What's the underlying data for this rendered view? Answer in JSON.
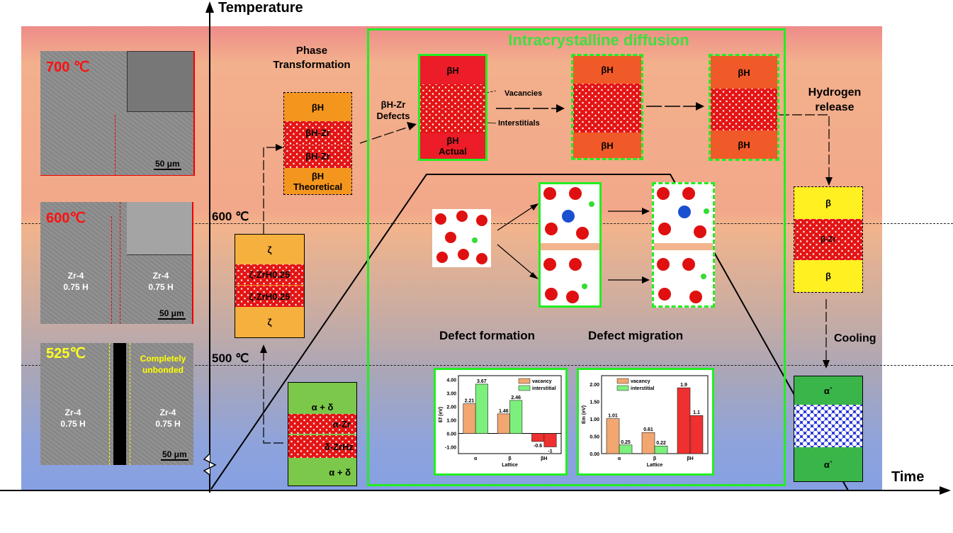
{
  "axes": {
    "y_label": "Temperature",
    "x_label": "Time",
    "t600": "600 ℃",
    "t500": "500 ℃"
  },
  "micrographs": [
    {
      "temp": "700 ℃",
      "scale": "50 μm",
      "color": "#ff1010"
    },
    {
      "temp": "600℃",
      "scale": "50 μm",
      "left": "Zr-4\n0.75 H",
      "right": "Zr-4\n0.75 H",
      "color": "#ff1010"
    },
    {
      "temp": "525℃",
      "scale": "50 μm",
      "left": "Zr-4\n0.75 H",
      "right": "Zr-4\n0.75 H",
      "note": "Completely\nunbonded",
      "color": "#ffff20"
    }
  ],
  "phase_transformation": {
    "title": "Phase\nTransformation",
    "theoretical": {
      "top": "βH",
      "mid1": "βH-Zr",
      "mid2": "βH-Zr",
      "bottom": "βH",
      "caption": "Theoretical"
    },
    "zeta": {
      "top": "ζ",
      "mid1": "ζ-ZrH0.25",
      "mid2": "ζ-ZrH0.25",
      "bottom": "ζ"
    },
    "alpha_delta": {
      "top": "α + δ",
      "mid1": "α-Zr",
      "mid2": "δ-ZrHz",
      "bottom": "α + δ"
    }
  },
  "diffusion": {
    "title": "Intracrystalline diffusion",
    "defects_label": "βH-Zr\nDefects",
    "vacancies": "Vacancies",
    "interstitials": "Interstitials",
    "actual": {
      "top": "βH",
      "bottom": "βH",
      "caption": "Actual"
    },
    "stage2": {
      "top": "βH",
      "bottom": "βH"
    },
    "stage3": {
      "top": "βH",
      "bottom": "βH"
    },
    "defect_formation": "Defect formation",
    "defect_migration": "Defect migration"
  },
  "right": {
    "hydrogen_release": "Hydrogen\nrelease",
    "cooling": "Cooling",
    "beta": {
      "top": "β",
      "mid": "β-Zr",
      "bottom": "β"
    },
    "alpha": {
      "top": "α`",
      "bottom": "α`"
    }
  },
  "colors": {
    "frame_green": "#22ee22",
    "title_green": "#3ee03e",
    "vacancy": "#f2a670",
    "interstitial": "#7cf07c",
    "betaH": "#e8202a"
  },
  "chart_data": [
    {
      "type": "bar",
      "ylabel": "Ef (eV)",
      "xlabel": "Lattice",
      "categories": [
        "α",
        "β",
        "βH"
      ],
      "ylim": [
        -1.5,
        4.3
      ],
      "yticks": [
        "4.00",
        "3.00",
        "2.00",
        "1.00",
        "0.00",
        "-1.00"
      ],
      "ytick_values": [
        4,
        3,
        2,
        1,
        0,
        -1
      ],
      "series": [
        {
          "name": "vacancy",
          "values": [
            2.21,
            1.46,
            -0.6
          ]
        },
        {
          "name": "interstitial",
          "values": [
            3.67,
            2.46,
            -1
          ]
        }
      ],
      "labels": [
        [
          "2.21",
          "1.46",
          "-0.6"
        ],
        [
          "3.67",
          "2.46",
          "-1"
        ]
      ],
      "legend": "top-right"
    },
    {
      "type": "bar",
      "ylabel": "Em (eV)",
      "xlabel": "Lattice",
      "categories": [
        "α",
        "β",
        "βH"
      ],
      "ylim": [
        0,
        2.25
      ],
      "yticks": [
        "2.00",
        "1.50",
        "1.00",
        "0.50",
        "0.00"
      ],
      "ytick_values": [
        2,
        1.5,
        1,
        0.5,
        0
      ],
      "series": [
        {
          "name": "vacancy",
          "values": [
            1.01,
            0.61,
            1.9
          ]
        },
        {
          "name": "interstitial",
          "values": [
            0.25,
            0.22,
            1.1
          ]
        }
      ],
      "labels": [
        [
          "1.01",
          "0.61",
          "1.9"
        ],
        [
          "0.25",
          "0.22",
          "1.1"
        ]
      ],
      "legend": "top-left"
    }
  ]
}
